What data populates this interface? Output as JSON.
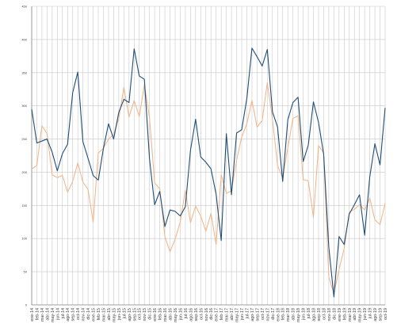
{
  "chart_data": {
    "type": "line",
    "title": "",
    "xlabel": "",
    "ylabel": "",
    "ylim": [
      0,
      450
    ],
    "yticks": [
      0,
      50,
      100,
      150,
      200,
      250,
      300,
      350,
      400,
      450
    ],
    "grid": true,
    "colors": {
      "series1": "#1f4e79",
      "series2": "#f4b183",
      "grid": "#c8c8c8",
      "axis": "#888888"
    },
    "categories": [
      "ene-14",
      "feb-14",
      "mar-14",
      "abr-14",
      "may-14",
      "jun-14",
      "jul-14",
      "ago-14",
      "sep-14",
      "oct-14",
      "nov-14",
      "dic-14",
      "ene-15",
      "feb-15",
      "mar-15",
      "abr-15",
      "may-15",
      "jun-15",
      "jul-15",
      "ago-15",
      "sep-15",
      "oct-15",
      "nov-15",
      "dic-15",
      "ene-16",
      "feb-16",
      "mar-16",
      "abr-16",
      "may-16",
      "jun-16",
      "jul-16",
      "ago-16",
      "sep-16",
      "oct-16",
      "nov-16",
      "dic-16",
      "ene-17",
      "feb-17",
      "mar-17",
      "abr-17",
      "may-17",
      "jun-17",
      "jul-17",
      "ago-17",
      "sep-17",
      "oct-17",
      "nov-17",
      "dic-17",
      "ene-18",
      "feb-18",
      "mar-18",
      "abr-18",
      "may-18",
      "jun-18",
      "jul-18",
      "ago-18",
      "sep-18",
      "oct-18",
      "nov-18",
      "dic-18",
      "ene-19",
      "feb-19",
      "mar-19",
      "abr-19",
      "may-19",
      "jun-19",
      "jul-19",
      "ago-19",
      "sep-19",
      "oct-19"
    ],
    "series": [
      {
        "values": [
          295,
          244,
          247,
          250,
          230,
          202,
          228,
          242,
          320,
          351,
          246,
          221,
          195,
          188,
          236,
          273,
          250,
          290,
          310,
          305,
          386,
          345,
          340,
          220,
          151,
          171,
          118,
          143,
          141,
          134,
          148,
          233,
          280,
          223,
          215,
          205,
          167,
          97,
          258,
          166,
          259,
          264,
          311,
          387,
          374,
          360,
          385,
          291,
          268,
          186,
          279,
          305,
          313,
          216,
          241,
          306,
          275,
          227,
          87,
          12,
          103,
          91,
          137,
          151,
          166,
          105,
          193,
          243,
          211,
          297
        ],
        "color": "#1f4e79"
      },
      {
        "values": [
          205,
          210,
          270,
          258,
          196,
          192,
          195,
          170,
          186,
          214,
          185,
          174,
          125,
          229,
          236,
          250,
          257,
          281,
          328,
          283,
          308,
          284,
          332,
          282,
          184,
          175,
          103,
          80,
          99,
          125,
          173,
          124,
          149,
          134,
          111,
          138,
          91,
          196,
          168,
          172,
          218,
          253,
          273,
          308,
          268,
          278,
          335,
          280,
          210,
          191,
          237,
          281,
          285,
          189,
          187,
          132,
          240,
          229,
          42,
          17,
          53,
          85,
          140,
          144,
          151,
          143,
          161,
          128,
          121,
          153
        ],
        "color": "#f4b183"
      }
    ]
  }
}
